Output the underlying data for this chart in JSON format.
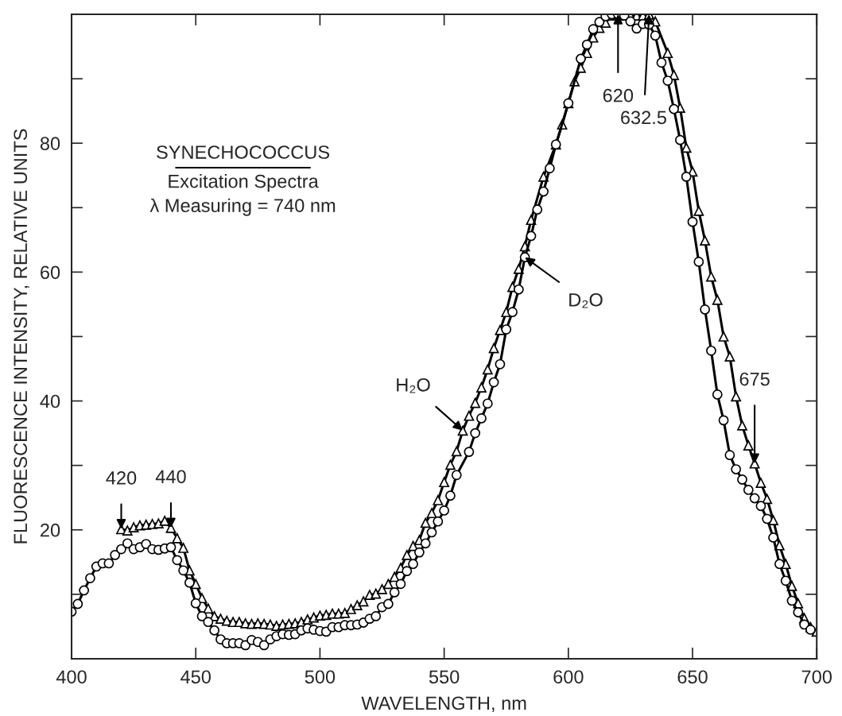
{
  "chart_data": {
    "type": "line",
    "title": "SYNECHOCOCCUS",
    "subtitle": "Excitation Spectra\nλ Measuring = 740 nm",
    "xlabel": "WAVELENGTH, nm",
    "ylabel": "FLUORESCENCE INTENSITY, RELATIVE UNITS",
    "xlim": [
      400,
      700
    ],
    "xticks": [
      400,
      450,
      500,
      550,
      600,
      650,
      700
    ],
    "ylim": [
      0,
      100
    ],
    "yticks": [
      {
        "value": 10,
        "label": null
      },
      20,
      {
        "value": 30,
        "label": null
      },
      40,
      {
        "value": 50,
        "label": null
      },
      60,
      {
        "value": 70,
        "label": null
      },
      80,
      {
        "value": 90,
        "label": null
      }
    ],
    "grid": false,
    "legend": false,
    "line_style": "solid",
    "series": [
      {
        "color": "#000000",
        "marker": "triangle",
        "x": [
          420,
          422.5,
          425,
          427.5,
          430,
          432.5,
          435,
          437.5,
          440,
          442.5,
          445,
          447.5,
          450,
          452.5,
          455,
          457.5,
          460,
          462.5,
          465,
          467.5,
          470,
          472.5,
          475,
          477.5,
          480,
          482.5,
          485,
          487.5,
          490,
          492.5,
          495,
          497.5,
          500,
          502.5,
          505,
          507.5,
          510,
          512.5,
          515,
          517.5,
          520,
          522.5,
          525,
          527.5,
          530,
          532.5,
          535,
          537.5,
          540,
          542.5,
          545,
          547.5,
          550,
          552.5,
          555,
          557.5,
          560,
          562.5,
          565,
          567.5,
          570,
          572.5,
          575,
          577.5,
          580,
          582.5,
          585,
          590,
          595,
          597.5,
          600,
          602.5,
          605,
          607.5,
          610,
          612.5,
          615,
          617.5,
          620,
          622.5,
          625,
          627.5,
          630,
          632.5,
          635,
          640,
          642.5,
          645,
          647.5,
          650,
          652.5,
          655,
          657.5,
          660,
          662.5,
          665,
          667.5,
          670,
          672.5,
          675,
          677.5,
          680,
          682.5,
          685,
          687.5,
          690,
          692.5,
          695,
          697.5,
          700
        ],
        "values": [
          20.1,
          19.9,
          20.4,
          20.7,
          20.8,
          20.9,
          21.0,
          21.4,
          20.3,
          18.7,
          17.2,
          13.7,
          11.6,
          9.4,
          7.8,
          6.6,
          6.2,
          5.9,
          5.7,
          5.7,
          5.5,
          5.4,
          5.5,
          5.4,
          5.3,
          5.1,
          5.3,
          5.4,
          5.5,
          5.7,
          6.1,
          6.4,
          6.7,
          6.8,
          7.0,
          7.0,
          7.1,
          7.7,
          8.3,
          8.9,
          9.9,
          10.1,
          10.8,
          11.6,
          12.7,
          14.1,
          16.1,
          17.5,
          18.4,
          21.1,
          22.6,
          24.6,
          27.4,
          30.1,
          32.2,
          35.4,
          37.7,
          39.7,
          42.1,
          44.9,
          48.2,
          51.0,
          53.8,
          57.7,
          60.5,
          64.0,
          68.1,
          74.8,
          79.8,
          82.9,
          86.2,
          89.6,
          91.7,
          94.0,
          96.4,
          97.9,
          98.7,
          99.8,
          100,
          99.8,
          99.8,
          99.8,
          99.8,
          100,
          98.9,
          94.0,
          90.6,
          85.5,
          79.3,
          75.6,
          69.5,
          64.9,
          59.3,
          55.7,
          50.0,
          46.9,
          40.7,
          36.2,
          33.1,
          30.3,
          27.3,
          24.8,
          21.5,
          17.6,
          14.7,
          11.3,
          8.6,
          6.3,
          4.9,
          4.2
        ]
      },
      {
        "color": "#000000",
        "marker": "circle",
        "x": [
          400,
          402.5,
          405,
          407.5,
          410,
          412.5,
          415,
          417.5,
          420,
          422.5,
          425,
          427.5,
          430,
          432.5,
          435,
          437.5,
          440,
          442.5,
          445,
          447.5,
          450,
          452.5,
          455,
          457.5,
          460,
          462.5,
          465,
          467.5,
          470,
          472.5,
          475,
          477.5,
          480,
          482.5,
          485,
          487.5,
          490,
          492.5,
          495,
          497.5,
          500,
          502.5,
          505,
          507.5,
          510,
          512.5,
          515,
          517.5,
          520,
          522.5,
          525,
          527.5,
          530,
          532.5,
          535,
          537.5,
          540,
          542.5,
          545,
          547.5,
          550,
          552.5,
          555,
          560,
          562.5,
          565,
          567.5,
          570,
          572.5,
          575,
          577.5,
          580,
          582.5,
          585,
          587.5,
          590,
          592.5,
          595,
          600,
          605,
          607.5,
          610,
          612.5,
          615,
          617.5,
          620,
          622.5,
          625,
          627.5,
          630,
          632.5,
          635,
          637.5,
          640,
          642.5,
          645,
          647.5,
          650,
          652.5,
          655,
          657.5,
          660,
          662.5,
          665,
          667.5,
          670,
          672.5,
          675,
          677.5,
          680,
          682.5,
          685,
          687.5,
          690,
          692.5,
          695,
          697.5
        ],
        "values": [
          7.3,
          8.5,
          10.6,
          12.5,
          14.3,
          14.8,
          14.8,
          16.1,
          17.0,
          17.9,
          17.0,
          17.3,
          17.8,
          17.0,
          16.9,
          17.1,
          17.3,
          15.3,
          13.7,
          11.8,
          8.6,
          6.6,
          5.7,
          4.4,
          3.0,
          2.4,
          2.4,
          2.4,
          2.1,
          2.9,
          2.6,
          2.1,
          3.0,
          3.5,
          3.8,
          3.7,
          3.8,
          4.4,
          4.7,
          4.5,
          4.3,
          4.2,
          4.9,
          4.9,
          5.2,
          5.2,
          5.3,
          5.6,
          6.2,
          6.6,
          8.0,
          8.5,
          10.3,
          11.6,
          13.6,
          14.7,
          16.5,
          17.9,
          19.6,
          21.3,
          23.0,
          25.3,
          28.5,
          32.1,
          35.0,
          37.3,
          39.6,
          42.9,
          45.7,
          51.1,
          53.8,
          57.3,
          62.3,
          65.6,
          69.7,
          72.5,
          76.1,
          79.8,
          86.2,
          93.1,
          95.3,
          97.7,
          98.8,
          99.7,
          100,
          100,
          99.8,
          98.9,
          97.8,
          98.5,
          98.4,
          96.7,
          92.5,
          89.7,
          85.3,
          80.5,
          74.8,
          67.8,
          61.6,
          54.2,
          47.8,
          41.0,
          37.0,
          31.6,
          29.4,
          27.8,
          26.2,
          24.9,
          23.7,
          21.7,
          18.8,
          14.7,
          12.1,
          9.0,
          7.2,
          5.3,
          4.5
        ]
      }
    ],
    "annotations": [
      {
        "text": "420",
        "x": 420,
        "y": 20.1
      },
      {
        "text": "440",
        "x": 440,
        "y": 20.3
      },
      {
        "text": "620",
        "x": 620,
        "y": 100
      },
      {
        "text": "632.5",
        "x": 632.5,
        "y": 100
      },
      {
        "text": "675",
        "x": 675,
        "y": 30.3
      },
      {
        "text": "H₂O",
        "x": 557.5,
        "y": 35.4
      },
      {
        "text": "D₂O",
        "x": 582.5,
        "y": 62.3
      }
    ]
  }
}
